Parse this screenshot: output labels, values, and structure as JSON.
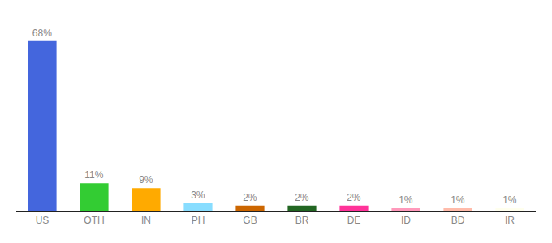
{
  "chart_data": {
    "type": "bar",
    "categories": [
      "US",
      "OTH",
      "IN",
      "PH",
      "GB",
      "BR",
      "DE",
      "ID",
      "BD",
      "IR"
    ],
    "values": [
      68,
      11,
      9,
      3,
      2,
      2,
      2,
      1,
      1,
      1
    ],
    "value_labels": [
      "68%",
      "11%",
      "9%",
      "3%",
      "2%",
      "2%",
      "2%",
      "1%",
      "1%",
      "1%"
    ],
    "colors": [
      "#4466dd",
      "#33cc33",
      "#ffaa00",
      "#88ddff",
      "#cc6600",
      "#226622",
      "#ff3399",
      "#ff99bb",
      "#ffbbaa",
      "#ffffee"
    ],
    "ylim": [
      0,
      78
    ],
    "data_labels": true,
    "tick_labels": "x",
    "grid": false
  }
}
